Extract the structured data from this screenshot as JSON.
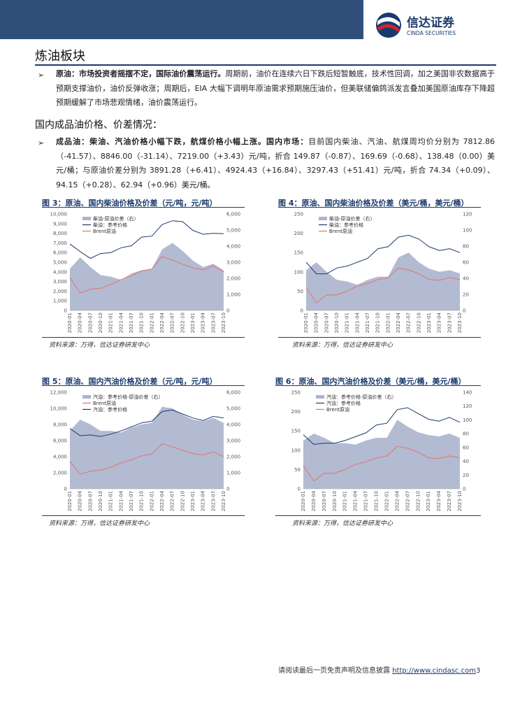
{
  "header": {
    "logo_cn": "信达证券",
    "logo_en": "CINDA SECURITIES"
  },
  "section_title": "炼油板块",
  "crude": {
    "bullet": "➢",
    "lead": "原油：市场投资者摇摆不定，国际油价震荡运行。",
    "body": "周期前，油价在连续六日下跌后短暂触底，技术性回调，加之美国非农数据高于预期支撑油价，油价反弹收涨；周期后，EIA 大幅下调明年原油需求预期施压油价，但美联储偏鸽派发言叠加美国原油库存下降超预期缓解了市场悲观情绪，油价震荡运行。"
  },
  "sub_heading": "国内成品油价格、价差情况：",
  "products": {
    "bullet": "➢",
    "lead": "成品油：柴油、汽油价格小幅下跌，航煤价格小幅上涨。国内市场：",
    "body": "目前国内柴油、汽油、航煤周均价分别为 7812.86（-41.57）、8846.00（-31.14）、7219.00（+3.43）元/吨，折合 149.87（-0.87）、169.69（-0.68）、138.48（0.00）美元/桶；与原油价差分别为 3891.28（+6.41）、4924.43（+16.84）、3297.43（+51.41）元/吨，折合 74.34（+0.09）、94.15（+0.28）、62.94（+0.96）美元/桶。"
  },
  "figures": [
    {
      "title": "图 3：原油、国内柴油价格及价差（元/吨，元/吨）",
      "source": "资料来源：万得，信达证券研发中心"
    },
    {
      "title": "图 4：原油、国内柴油价格及价差（美元/桶，美元/桶）",
      "source": "资料来源：万得，信达证券研发中心"
    },
    {
      "title": "图 5：原油、国内汽油价格及价差（元/吨，元/吨）",
      "source": "资料来源：万得，信达证券研发中心"
    },
    {
      "title": "图 6：原油、国内汽油价格及价差（美元/桶，美元/桶）",
      "source": "资料来源：万得，信达证券研发中心"
    }
  ],
  "chart_data": [
    {
      "type": "area",
      "x": [
        "2020-01",
        "2020-04",
        "2020-07",
        "2020-10",
        "2021-01",
        "2021-04",
        "2021-07",
        "2021-10",
        "2022-01",
        "2022-04",
        "2022-07",
        "2022-10",
        "2023-01",
        "2023-04",
        "2023-07",
        "2023-10"
      ],
      "series": [
        {
          "name": "柴油-原油价差（右）",
          "axis": "right",
          "kind": "area",
          "color": "#aab4cc",
          "values": [
            2600,
            3300,
            2700,
            2200,
            2100,
            1900,
            2300,
            2500,
            2600,
            3800,
            4200,
            3700,
            3100,
            2700,
            2900,
            2500
          ]
        },
        {
          "name": "柴油：参考价格",
          "axis": "left",
          "kind": "line",
          "color": "#1a3a6c",
          "values": [
            6900,
            6100,
            5400,
            5900,
            6000,
            6500,
            6700,
            7600,
            7700,
            8900,
            9300,
            9200,
            8300,
            7900,
            8000,
            7950
          ]
        },
        {
          "name": "Brent原油",
          "axis": "left",
          "kind": "line",
          "color": "#e87070",
          "values": [
            3400,
            1800,
            2200,
            2300,
            2700,
            3200,
            3600,
            4100,
            4300,
            5600,
            5200,
            4800,
            4400,
            4200,
            4600,
            4000
          ]
        }
      ],
      "ylim_left": [
        0,
        10000
      ],
      "yticks_left": [
        "0",
        "1,000",
        "2,000",
        "3,000",
        "4,000",
        "5,000",
        "6,000",
        "7,000",
        "8,000",
        "9,000",
        "10,000"
      ],
      "ylim_right": [
        0,
        6000
      ],
      "yticks_right": [
        "0",
        "1,000",
        "2,000",
        "3,000",
        "4,000",
        "5,000",
        "6,000"
      ],
      "legend": "top-left"
    },
    {
      "type": "area",
      "x": [
        "2020-01",
        "2020-04",
        "2020-07",
        "2020-10",
        "2021-01",
        "2021-04",
        "2021-07",
        "2021-10",
        "2022-01",
        "2022-04",
        "2022-07",
        "2022-10",
        "2023-01",
        "2023-04",
        "2023-07",
        "2023-10"
      ],
      "series": [
        {
          "name": "柴油-原油价差（右）",
          "axis": "right",
          "kind": "area",
          "color": "#aab4cc",
          "values": [
            50,
            60,
            48,
            38,
            36,
            32,
            38,
            42,
            42,
            66,
            72,
            60,
            52,
            48,
            50,
            46
          ]
        },
        {
          "name": "柴油：参考价格",
          "axis": "left",
          "kind": "line",
          "color": "#1a3a6c",
          "values": [
            125,
            95,
            95,
            110,
            115,
            125,
            135,
            160,
            165,
            190,
            195,
            185,
            165,
            155,
            160,
            150
          ]
        },
        {
          "name": "Brent原油",
          "axis": "left",
          "kind": "line",
          "color": "#e87070",
          "values": [
            60,
            20,
            40,
            40,
            50,
            63,
            70,
            80,
            85,
            110,
            105,
            95,
            80,
            78,
            85,
            80
          ]
        }
      ],
      "ylim_left": [
        0,
        250
      ],
      "yticks_left": [
        "0",
        "50",
        "100",
        "150",
        "200",
        "250"
      ],
      "ylim_right": [
        0,
        120
      ],
      "yticks_right": [
        "0",
        "20",
        "40",
        "60",
        "80",
        "100",
        "120"
      ],
      "legend": "top-left"
    },
    {
      "type": "area",
      "x": [
        "2020-01",
        "2020-04",
        "2020-07",
        "2020-10",
        "2021-01",
        "2021-04",
        "2021-07",
        "2021-10",
        "2022-01",
        "2022-04",
        "2022-07",
        "2022-10",
        "2023-01",
        "2023-04",
        "2023-07",
        "2023-10"
      ],
      "series": [
        {
          "name": "汽油：参考价格-原油价差（右）",
          "axis": "right",
          "kind": "area",
          "color": "#aab4cc",
          "values": [
            3600,
            4300,
            4000,
            3600,
            3600,
            3500,
            3800,
            4000,
            4100,
            5100,
            5000,
            4600,
            4300,
            4200,
            4400,
            4100
          ]
        },
        {
          "name": "Brent原油",
          "axis": "left",
          "kind": "line",
          "color": "#e87070",
          "values": [
            3400,
            1800,
            2200,
            2300,
            2700,
            3200,
            3600,
            4100,
            4300,
            5600,
            5200,
            4800,
            4400,
            4200,
            4600,
            4000
          ]
        },
        {
          "name": "汽油：参考价格",
          "axis": "left",
          "kind": "line",
          "color": "#1a3a6c",
          "values": [
            7500,
            6600,
            6700,
            6500,
            6800,
            7200,
            7700,
            8200,
            8400,
            9600,
            9800,
            9300,
            8800,
            8500,
            9000,
            8800
          ]
        }
      ],
      "ylim_left": [
        0,
        12000
      ],
      "yticks_left": [
        "0",
        "2,000",
        "4,000",
        "6,000",
        "8,000",
        "10,000",
        "12,000"
      ],
      "ylim_right": [
        0,
        6000
      ],
      "yticks_right": [
        "0",
        "1,000",
        "2,000",
        "3,000",
        "4,000",
        "5,000",
        "6,000"
      ],
      "legend": "top-left"
    },
    {
      "type": "area",
      "x": [
        "2020-01",
        "2020-04",
        "2020-07",
        "2020-10",
        "2021-01",
        "2021-04",
        "2021-07",
        "2021-10",
        "2022-01",
        "2022-04",
        "2022-07",
        "2022-10",
        "2023-01",
        "2023-04",
        "2023-07",
        "2023-10"
      ],
      "series": [
        {
          "name": "汽油：参考价格-原油价差（右）",
          "axis": "right",
          "kind": "area",
          "color": "#aab4cc",
          "values": [
            70,
            80,
            74,
            66,
            66,
            64,
            70,
            74,
            74,
            100,
            90,
            82,
            78,
            76,
            80,
            74
          ]
        },
        {
          "name": "汽油：参考价格",
          "axis": "left",
          "kind": "line",
          "color": "#1a3a6c",
          "values": [
            140,
            115,
            118,
            118,
            125,
            135,
            145,
            165,
            170,
            205,
            210,
            195,
            180,
            175,
            185,
            172
          ]
        },
        {
          "name": "Brent原油",
          "axis": "left",
          "kind": "line",
          "color": "#e87070",
          "values": [
            60,
            20,
            40,
            40,
            50,
            63,
            70,
            80,
            85,
            110,
            105,
            95,
            80,
            78,
            85,
            80
          ]
        }
      ],
      "ylim_left": [
        0,
        250
      ],
      "yticks_left": [
        "0",
        "50",
        "100",
        "150",
        "200",
        "250"
      ],
      "ylim_right": [
        0,
        140
      ],
      "yticks_right": [
        "0",
        "20",
        "40",
        "60",
        "80",
        "100",
        "120",
        "140"
      ],
      "legend": "top-left"
    }
  ],
  "footer": {
    "text": "请阅读最后一页免责声明及信息披露 ",
    "link": "http://www.cindasc.com",
    "page": "3"
  }
}
